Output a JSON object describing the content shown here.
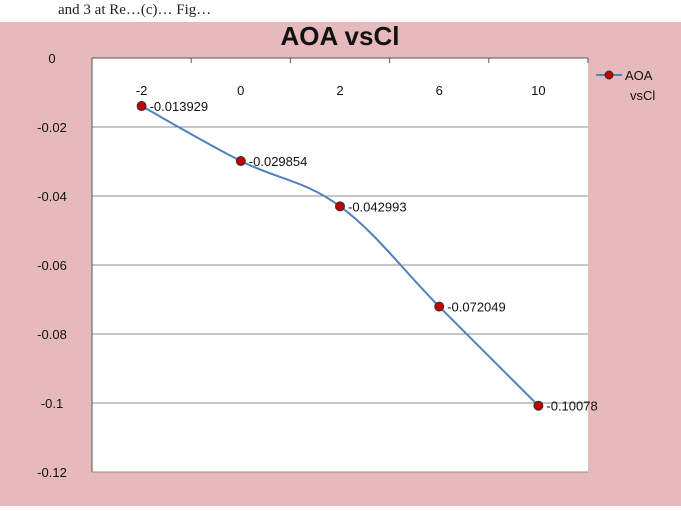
{
  "header_text": "and 3 at Re…(c)… Fig…",
  "chart_data": {
    "type": "line",
    "title": "AOA vsCl",
    "xlabel": "",
    "ylabel": "",
    "categories": [
      "-2",
      "0",
      "2",
      "6",
      "10"
    ],
    "series": [
      {
        "name": "AOA vsCl",
        "values": [
          -0.013929,
          -0.029854,
          -0.042993,
          -0.072049,
          -0.10078
        ],
        "labels": [
          "-0.013929",
          "-0.029854",
          "-0.042993",
          "-0.072049",
          "-0.10078"
        ],
        "color": "#4f81bd",
        "marker_color": "#c00000"
      }
    ],
    "ylim": [
      -0.12,
      0
    ],
    "yticks": [
      "0",
      "-0.02",
      "-0.04",
      "-0.06",
      "-0.08",
      "-0.1",
      "-0.12"
    ],
    "ytick_values": [
      0,
      -0.02,
      -0.04,
      -0.06,
      -0.08,
      -0.1,
      -0.12
    ],
    "grid": true,
    "legend": "right",
    "legend_lines": [
      "AOA",
      "vsCl"
    ],
    "background_color": "#e6b9bc",
    "plot_background": "#ffffff"
  }
}
